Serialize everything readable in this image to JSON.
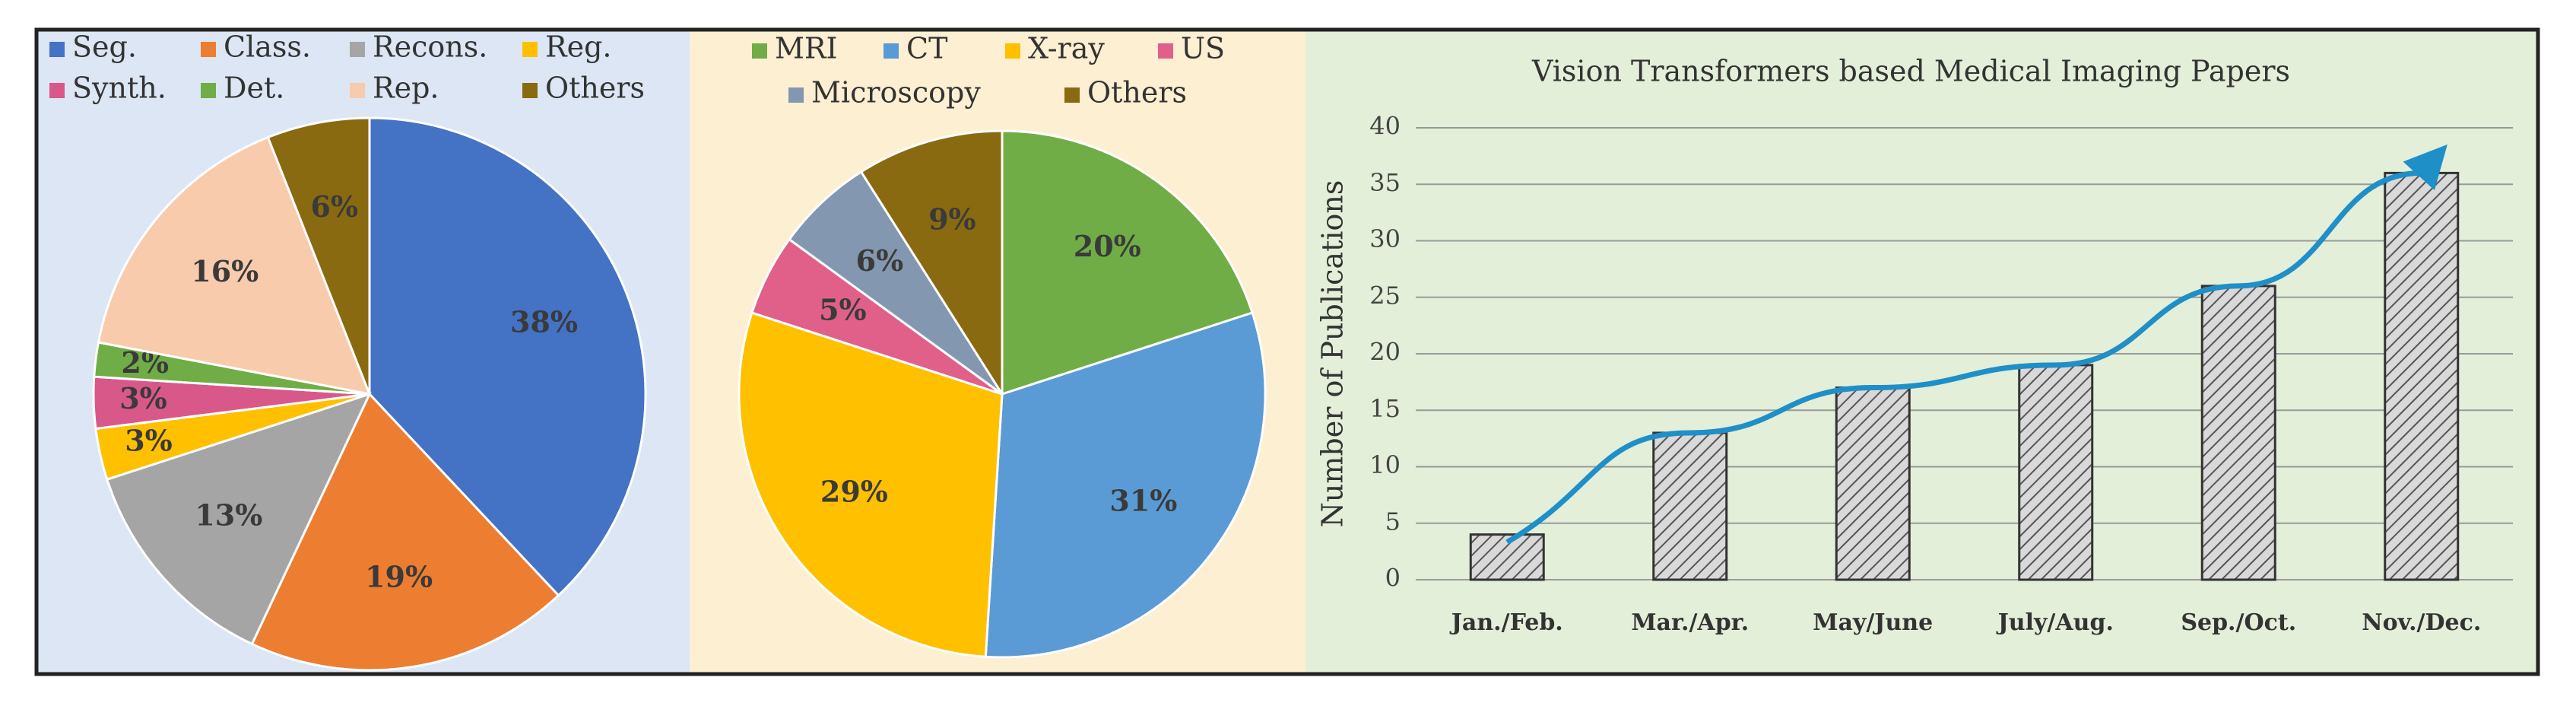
{
  "chart_data": [
    {
      "type": "pie",
      "categories": [
        "Seg.",
        "Class.",
        "Recons.",
        "Reg.",
        "Synth.",
        "Det.",
        "Rep.",
        "Others"
      ],
      "values": [
        38,
        19,
        13,
        3,
        3,
        2,
        16,
        6
      ],
      "value_labels": [
        "38%",
        "19%",
        "13%",
        "3%",
        "3%",
        "2%",
        "16%",
        "6%"
      ],
      "colors": [
        "#4472c4",
        "#ed7d31",
        "#a5a5a5",
        "#ffc000",
        "#d9588a",
        "#70ad47",
        "#f8cbad",
        "#8a6a10"
      ],
      "legend": "top"
    },
    {
      "type": "pie",
      "categories": [
        "MRI",
        "CT",
        "X-ray",
        "US",
        "Microscopy",
        "Others"
      ],
      "values": [
        20,
        31,
        29,
        5,
        6,
        9
      ],
      "value_labels": [
        "20%",
        "31%",
        "29%",
        "5%",
        "6%",
        "9%"
      ],
      "colors": [
        "#70ad47",
        "#5b9bd5",
        "#ffc000",
        "#e0608a",
        "#8497b0",
        "#8a6a10"
      ],
      "legend": "top"
    },
    {
      "type": "bar",
      "title": "Vision Transformers based Medical Imaging Papers",
      "ylabel": "Number of Publications",
      "categories": [
        "Jan./Feb.",
        "Mar./Apr.",
        "May/June",
        "July/Aug.",
        "Sep./Oct.",
        "Nov./Dec."
      ],
      "values": [
        4,
        13,
        17,
        19,
        26,
        36
      ],
      "color": "#d9d9d9",
      "ylim": [
        0,
        40
      ],
      "yticks": [
        0,
        5,
        10,
        15,
        20,
        25,
        30,
        35,
        40
      ],
      "grid": true
    }
  ]
}
